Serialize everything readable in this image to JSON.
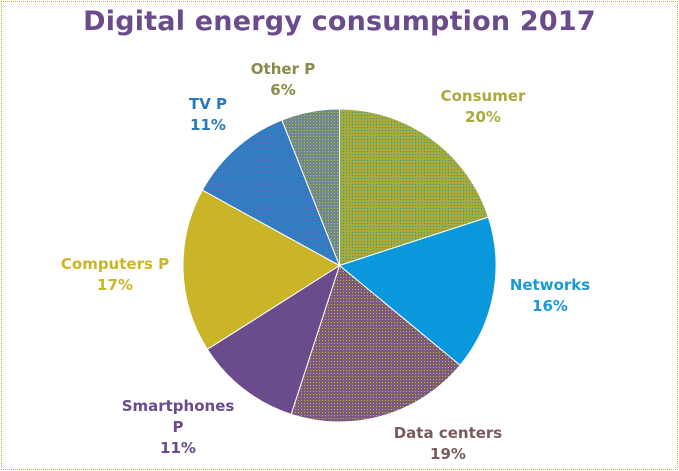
{
  "chart_data": {
    "type": "pie",
    "title": "Digital energy consumption 2017",
    "start_angle": "12 o'clock",
    "direction": "clockwise",
    "slices": [
      {
        "label": "Consumer",
        "value": 20,
        "value_label": "20%",
        "color": "#a8ab3a",
        "label_color": "#a8ab3a",
        "pattern": "dotted"
      },
      {
        "label": "Networks",
        "value": 16,
        "value_label": "16%",
        "color": "#0898db",
        "label_color": "#1a9ad6",
        "pattern": "solid"
      },
      {
        "label": "Data centers",
        "value": 19,
        "value_label": "19%",
        "color": "#7a5a7e",
        "label_color": "#7a5a5e",
        "pattern": "dotted"
      },
      {
        "label": "Smartphones P",
        "label_lines": [
          "Smartphones",
          "P"
        ],
        "value": 11,
        "value_label": "11%",
        "color": "#6a4c8c",
        "label_color": "#6a4c8c",
        "pattern": "solid"
      },
      {
        "label": "Computers P",
        "value": 17,
        "value_label": "17%",
        "color": "#c9b527",
        "label_color": "#c9b527",
        "pattern": "solid"
      },
      {
        "label": "TV P",
        "value": 11,
        "value_label": "11%",
        "color": "#2e7fc4",
        "label_color": "#2a78bd",
        "pattern": "dotted"
      },
      {
        "label": "Other P",
        "value": 6,
        "value_label": "6%",
        "color": "#6d8a8e",
        "label_color": "#8a8a4a",
        "pattern": "dotted"
      }
    ],
    "legend": "none"
  },
  "frame_color": "#c9b527"
}
